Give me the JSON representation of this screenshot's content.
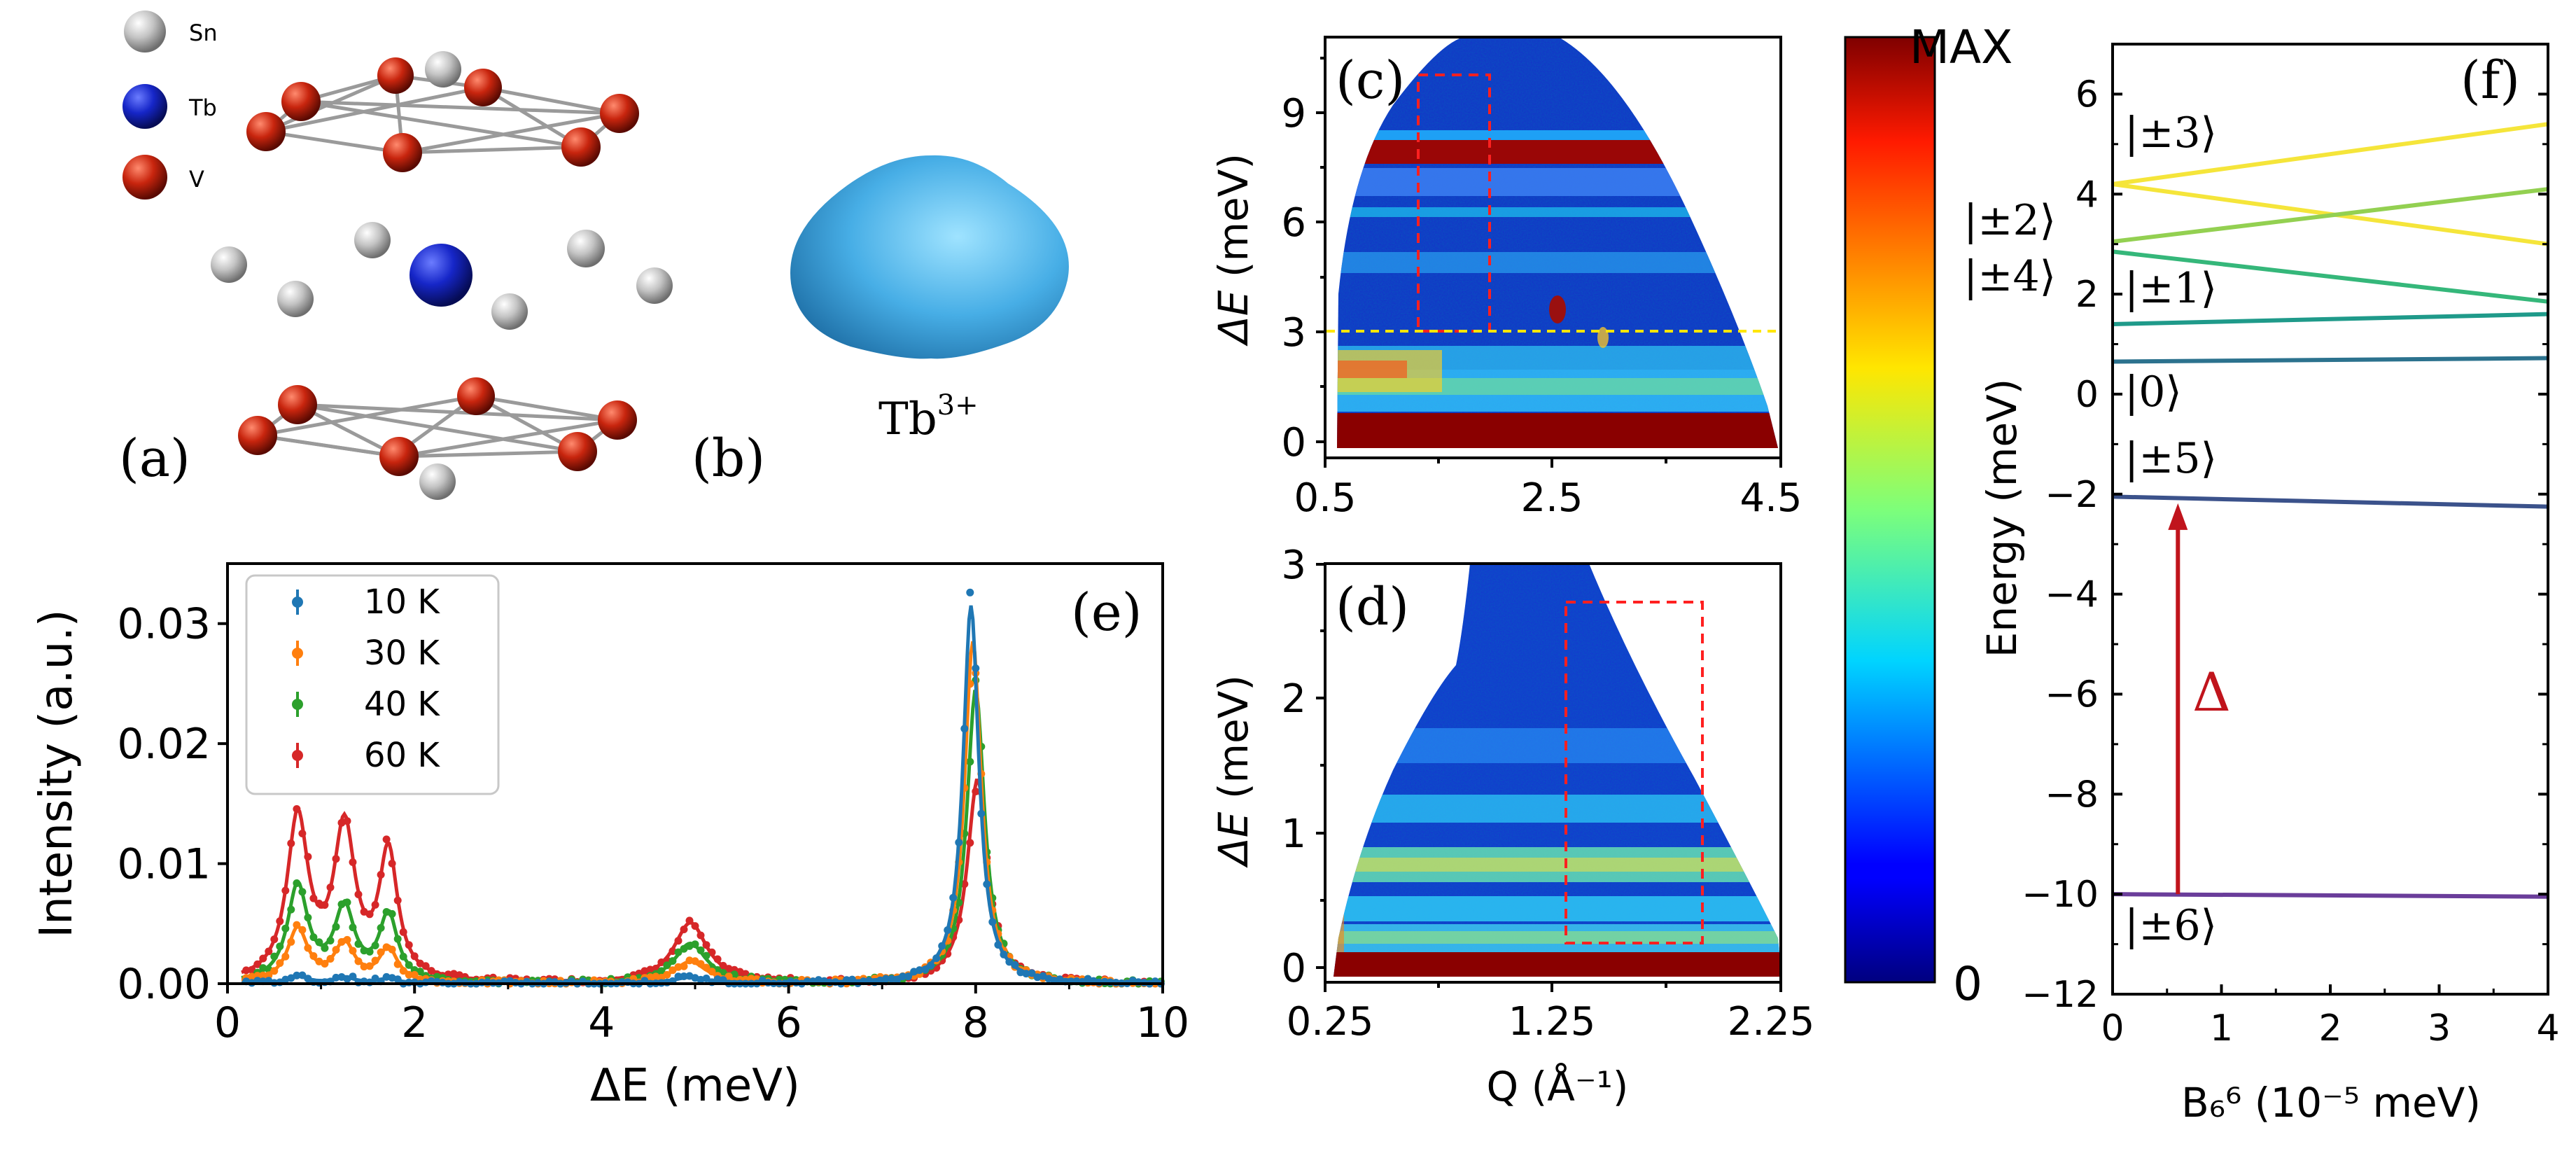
{
  "panel_a": {
    "label": "(a)",
    "legend": [
      {
        "name": "Sn",
        "color": "#c8c8c8"
      },
      {
        "name": "Tb",
        "color": "#1a2bd0"
      },
      {
        "name": "V",
        "color": "#c8250e"
      }
    ]
  },
  "panel_b": {
    "label": "(b)",
    "ion": "Tb",
    "ion_sup": "3+",
    "shape_color": "#4fb2e6"
  },
  "panel_c": {
    "label": "(c)",
    "ylabel_sym": "ΔE",
    "ylabel_unit": "(meV)",
    "yticks": [
      "0",
      "3",
      "6",
      "9"
    ],
    "xticks": [
      "0.5",
      "2.5",
      "4.5"
    ]
  },
  "panel_d": {
    "label": "(d)",
    "ylabel_sym": "ΔE",
    "ylabel_unit": "(meV)",
    "yticks": [
      "0",
      "1",
      "2",
      "3"
    ],
    "xticks": [
      "0.25",
      "1.25",
      "2.25"
    ],
    "xlabel": "Q (Å⁻¹)"
  },
  "colorbar": {
    "max_label": "MAX",
    "min_label": "0"
  },
  "chart_data": [
    {
      "panel": "e",
      "type": "line",
      "label": "(e)",
      "xlabel": "ΔE (meV)",
      "ylabel": "Intensity (a.u.)",
      "xlim": [
        0,
        10
      ],
      "ylim": [
        0,
        0.035
      ],
      "xticks": [
        "0",
        "2",
        "4",
        "6",
        "8",
        "10"
      ],
      "yticks": [
        "0.00",
        "0.01",
        "0.02",
        "0.03"
      ],
      "legend_position": "top-left",
      "series": [
        {
          "name": "10 K",
          "color": "#1f77b4",
          "peaks": [
            [
              0.75,
              0.0006,
              0.22
            ],
            [
              1.25,
              0.0005,
              0.22
            ],
            [
              1.72,
              0.0004,
              0.2
            ],
            [
              4.95,
              0.0005,
              0.35
            ],
            [
              7.95,
              0.0315,
              0.17
            ]
          ]
        },
        {
          "name": "30 K",
          "color": "#ff7f0e",
          "peaks": [
            [
              0.75,
              0.0045,
              0.22
            ],
            [
              1.25,
              0.0032,
              0.22
            ],
            [
              1.72,
              0.0028,
              0.2
            ],
            [
              4.95,
              0.0018,
              0.35
            ],
            [
              7.97,
              0.0285,
              0.18
            ]
          ]
        },
        {
          "name": "40 K",
          "color": "#2ca02c",
          "peaks": [
            [
              0.75,
              0.008,
              0.22
            ],
            [
              1.25,
              0.006,
              0.22
            ],
            [
              1.72,
              0.0055,
              0.2
            ],
            [
              4.95,
              0.0033,
              0.35
            ],
            [
              8.0,
              0.0245,
              0.19
            ]
          ]
        },
        {
          "name": "60 K",
          "color": "#d62728",
          "peaks": [
            [
              0.75,
              0.0135,
              0.23
            ],
            [
              1.25,
              0.0125,
              0.23
            ],
            [
              1.72,
              0.0105,
              0.2
            ],
            [
              4.95,
              0.005,
              0.36
            ],
            [
              8.02,
              0.017,
              0.22
            ]
          ]
        }
      ]
    },
    {
      "panel": "f",
      "type": "line",
      "label": "(f)",
      "xlabel": "B₆⁶ (10⁻⁵ meV)",
      "ylabel": "Energy (meV)",
      "xlim": [
        0,
        4
      ],
      "ylim": [
        -12,
        7
      ],
      "xticks": [
        "0",
        "1",
        "2",
        "3",
        "4"
      ],
      "yticks": [
        "6",
        "4",
        "2",
        "0",
        "−2",
        "−4",
        "−6",
        "−8",
        "−10",
        "−12"
      ],
      "series": [
        {
          "color": "#f5e53a",
          "x": [
            0,
            4
          ],
          "y": [
            4.2,
            5.4
          ]
        },
        {
          "color": "#f5e53a",
          "x": [
            0,
            4
          ],
          "y": [
            4.2,
            3.0
          ]
        },
        {
          "color": "#93d051",
          "x": [
            0,
            4
          ],
          "y": [
            3.05,
            4.1
          ]
        },
        {
          "color": "#35b77a",
          "x": [
            0,
            4
          ],
          "y": [
            2.85,
            1.85
          ]
        },
        {
          "color": "#1f9a8a",
          "x": [
            0,
            4
          ],
          "y": [
            1.4,
            1.6
          ]
        },
        {
          "color": "#2c728e",
          "x": [
            0,
            4
          ],
          "y": [
            0.65,
            0.72
          ]
        },
        {
          "color": "#3b528b",
          "x": [
            0,
            4
          ],
          "y": [
            -2.05,
            -2.25
          ]
        },
        {
          "color": "#6a3d9a",
          "x": [
            0,
            4
          ],
          "y": [
            -10.0,
            -10.05
          ]
        }
      ],
      "level_labels": [
        "|±3⟩",
        "|±2⟩",
        "|±4⟩",
        "|±1⟩",
        "|0⟩",
        "|±5⟩",
        "|±6⟩"
      ],
      "arrow_label": "Δ",
      "arrow": {
        "x": 0.6,
        "from": -10,
        "to": -2.1,
        "color": "#c0141c"
      }
    }
  ]
}
